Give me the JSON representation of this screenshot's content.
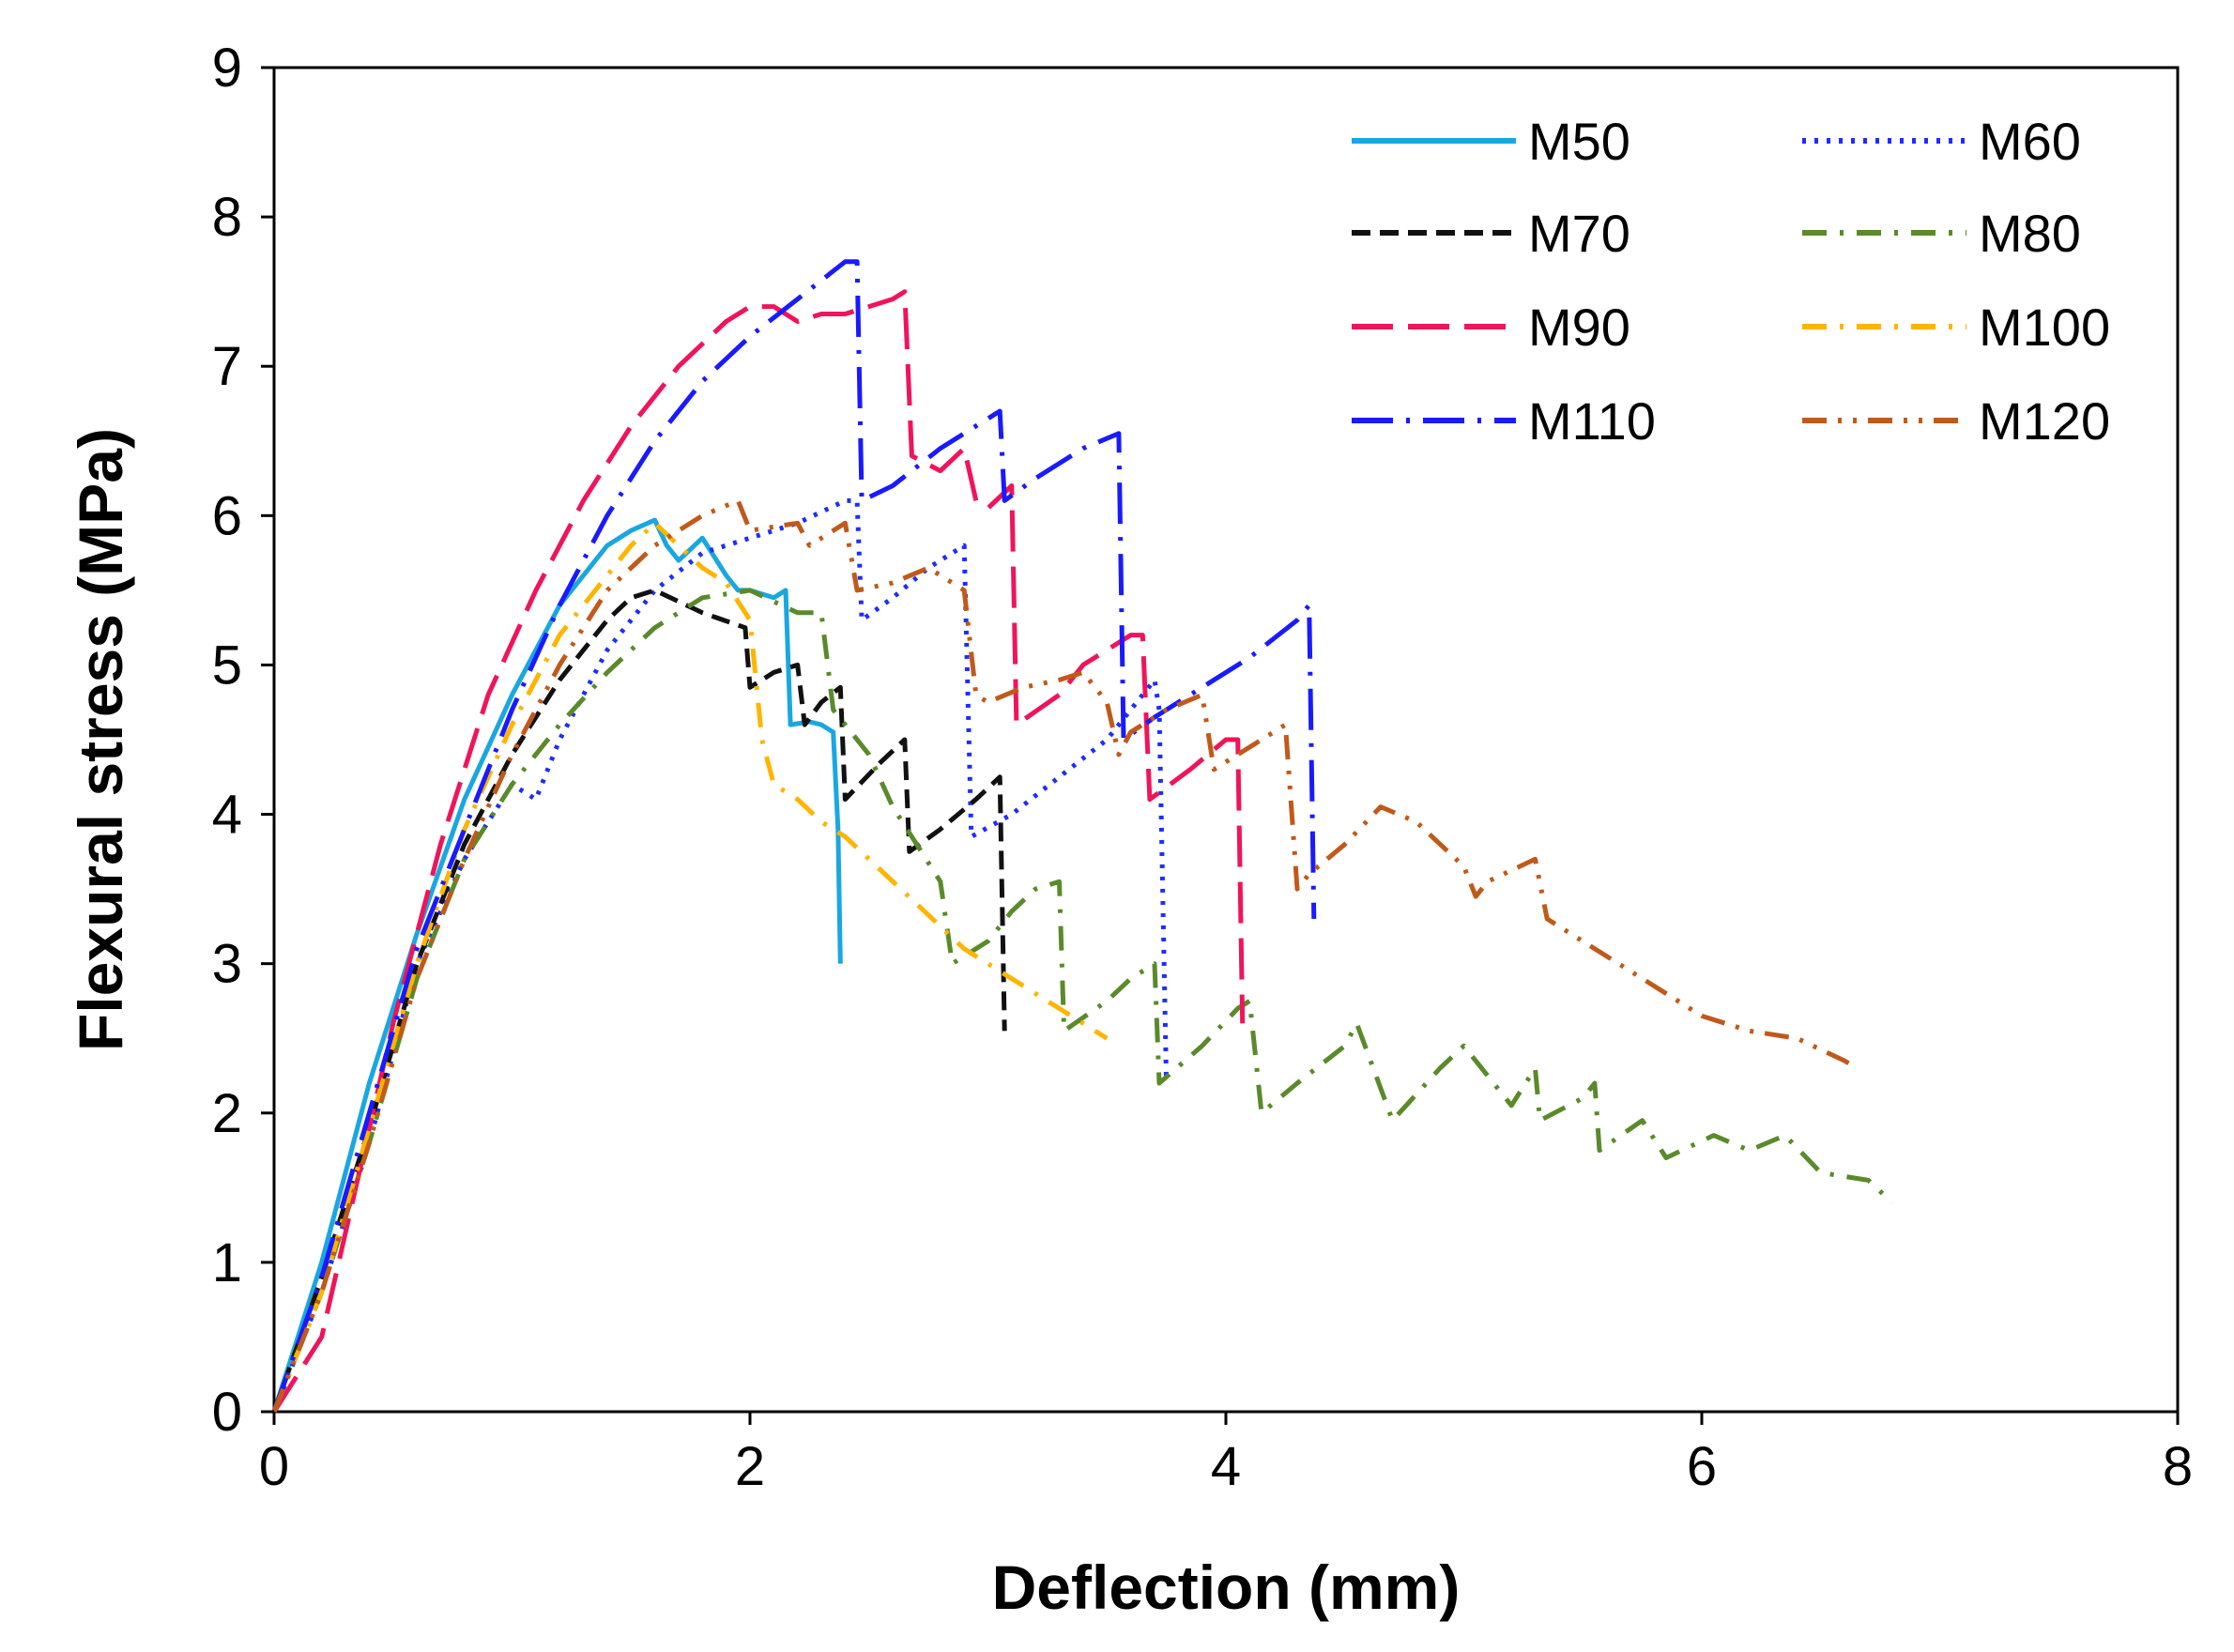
{
  "chart_data": {
    "type": "line",
    "title": "",
    "xlabel": "Deflection (mm)",
    "ylabel": "Flexural stress (MPa)",
    "xlim": [
      0,
      8
    ],
    "ylim": [
      0,
      9
    ],
    "x_ticks": [
      "0",
      "2",
      "4",
      "6",
      "8"
    ],
    "y_ticks": [
      "0",
      "1",
      "2",
      "3",
      "4",
      "5",
      "6",
      "7",
      "8",
      "9"
    ],
    "grid": false,
    "legend_position": "top-right",
    "series": [
      {
        "name": "M50",
        "color": "#1aa7e0",
        "dash": "solid",
        "x": [
          0,
          0.1,
          0.2,
          0.4,
          0.6,
          0.8,
          1.0,
          1.2,
          1.4,
          1.5,
          1.6,
          1.65,
          1.7,
          1.8,
          1.9,
          1.95,
          2.0,
          2.1,
          2.15,
          2.17,
          2.25,
          2.3,
          2.35,
          2.37,
          2.38
        ],
        "y": [
          0,
          0.5,
          1.0,
          2.2,
          3.2,
          4.1,
          4.8,
          5.4,
          5.8,
          5.9,
          5.97,
          5.8,
          5.7,
          5.85,
          5.6,
          5.5,
          5.5,
          5.45,
          5.5,
          4.6,
          4.62,
          4.6,
          4.55,
          3.9,
          3.0
        ]
      },
      {
        "name": "M60",
        "color": "#1f2cff",
        "dash": "dotted",
        "x": [
          0,
          0.2,
          0.4,
          0.6,
          0.8,
          1.0,
          1.1,
          1.2,
          1.4,
          1.6,
          1.8,
          2.0,
          2.2,
          2.4,
          2.45,
          2.47,
          2.6,
          2.75,
          2.9,
          2.93,
          3.1,
          3.3,
          3.5,
          3.6,
          3.7,
          3.72,
          3.75
        ],
        "y": [
          0,
          0.8,
          1.8,
          3.0,
          3.7,
          4.2,
          4.1,
          4.5,
          5.1,
          5.5,
          5.75,
          5.85,
          5.95,
          6.1,
          6.1,
          5.3,
          5.45,
          5.65,
          5.8,
          3.85,
          4.0,
          4.25,
          4.5,
          4.7,
          4.9,
          4.7,
          2.2
        ]
      },
      {
        "name": "M70",
        "color": "#111111",
        "dash": "dashed",
        "x": [
          0,
          0.2,
          0.4,
          0.6,
          0.8,
          1.0,
          1.2,
          1.4,
          1.5,
          1.6,
          1.8,
          1.98,
          2.0,
          2.1,
          2.2,
          2.23,
          2.3,
          2.38,
          2.4,
          2.55,
          2.65,
          2.67,
          2.8,
          2.95,
          3.05,
          3.07
        ],
        "y": [
          0,
          0.9,
          1.9,
          3.0,
          3.8,
          4.4,
          4.9,
          5.3,
          5.45,
          5.5,
          5.35,
          5.25,
          4.85,
          4.95,
          5.0,
          4.6,
          4.75,
          4.85,
          4.1,
          4.35,
          4.5,
          3.75,
          3.9,
          4.1,
          4.25,
          2.55
        ]
      },
      {
        "name": "M80",
        "color": "#5a8a2a",
        "dash": "dash-dot",
        "x": [
          0,
          0.2,
          0.4,
          0.6,
          0.8,
          1.0,
          1.2,
          1.4,
          1.6,
          1.8,
          2.0,
          2.2,
          2.3,
          2.35,
          2.5,
          2.6,
          2.7,
          2.8,
          2.85,
          3.0,
          3.1,
          3.2,
          3.3,
          3.32,
          3.5,
          3.6,
          3.7,
          3.72,
          3.9,
          4.05,
          4.1,
          4.15,
          4.3,
          4.5,
          4.55,
          4.7,
          4.9,
          5.0,
          5.2,
          5.3,
          5.32,
          5.5,
          5.55,
          5.57,
          5.75,
          5.85,
          6.05,
          6.2,
          6.35,
          6.5,
          6.7,
          6.8
        ],
        "y": [
          0,
          0.8,
          1.8,
          2.9,
          3.7,
          4.2,
          4.6,
          4.95,
          5.25,
          5.45,
          5.5,
          5.35,
          5.35,
          4.7,
          4.4,
          4.05,
          3.8,
          3.55,
          3.0,
          3.15,
          3.35,
          3.5,
          3.55,
          2.55,
          2.75,
          2.9,
          3.0,
          2.2,
          2.45,
          2.7,
          2.75,
          2.0,
          2.2,
          2.45,
          2.6,
          1.95,
          2.3,
          2.45,
          2.05,
          2.3,
          1.95,
          2.1,
          2.2,
          1.75,
          1.95,
          1.7,
          1.85,
          1.75,
          1.85,
          1.6,
          1.55,
          1.4
        ]
      },
      {
        "name": "M90",
        "color": "#f0145a",
        "dash": "long-dash",
        "x": [
          0,
          0.2,
          0.3,
          0.5,
          0.7,
          0.9,
          1.1,
          1.3,
          1.5,
          1.7,
          1.9,
          2.0,
          2.1,
          2.2,
          2.3,
          2.4,
          2.5,
          2.6,
          2.65,
          2.68,
          2.8,
          2.9,
          2.95,
          3.0,
          3.1,
          3.12,
          3.3,
          3.4,
          3.5,
          3.6,
          3.65,
          3.68,
          3.85,
          4.0,
          4.05,
          4.07
        ],
        "y": [
          0,
          0.5,
          1.2,
          2.6,
          3.8,
          4.8,
          5.5,
          6.1,
          6.6,
          7.0,
          7.3,
          7.4,
          7.4,
          7.3,
          7.35,
          7.35,
          7.4,
          7.45,
          7.5,
          6.4,
          6.3,
          6.45,
          6.1,
          6.05,
          6.2,
          4.6,
          4.8,
          5.0,
          5.1,
          5.2,
          5.2,
          4.1,
          4.3,
          4.5,
          4.5,
          2.6
        ]
      },
      {
        "name": "M100",
        "color": "#ffb400",
        "dash": "dash-dot",
        "x": [
          0,
          0.2,
          0.4,
          0.6,
          0.8,
          1.0,
          1.2,
          1.4,
          1.5,
          1.6,
          1.7,
          1.8,
          1.9,
          2.0,
          2.05,
          2.1,
          2.2,
          2.3,
          2.4,
          2.5,
          2.7,
          2.9,
          3.1,
          3.3,
          3.5
        ],
        "y": [
          0,
          0.8,
          1.9,
          3.0,
          3.9,
          4.6,
          5.2,
          5.6,
          5.8,
          5.95,
          5.8,
          5.65,
          5.55,
          5.3,
          4.5,
          4.2,
          4.1,
          3.95,
          3.85,
          3.7,
          3.4,
          3.1,
          2.9,
          2.7,
          2.5
        ]
      },
      {
        "name": "M110",
        "color": "#1a1aff",
        "dash": "long-dash-dot",
        "x": [
          0,
          0.2,
          0.4,
          0.6,
          0.8,
          1.0,
          1.2,
          1.4,
          1.6,
          1.8,
          2.0,
          2.2,
          2.4,
          2.45,
          2.47,
          2.6,
          2.8,
          3.0,
          3.05,
          3.07,
          3.2,
          3.4,
          3.55,
          3.57,
          3.7,
          3.9,
          4.1,
          4.3,
          4.35,
          4.37
        ],
        "y": [
          0,
          0.9,
          2.0,
          3.1,
          3.9,
          4.7,
          5.4,
          6.0,
          6.5,
          6.9,
          7.2,
          7.45,
          7.7,
          7.7,
          6.1,
          6.2,
          6.45,
          6.65,
          6.7,
          6.1,
          6.25,
          6.45,
          6.55,
          4.5,
          4.65,
          4.85,
          5.05,
          5.3,
          5.4,
          3.3
        ]
      },
      {
        "name": "M120",
        "color": "#c05a1a",
        "dash": "dash-dot-dot",
        "x": [
          0,
          0.2,
          0.4,
          0.6,
          0.8,
          1.0,
          1.2,
          1.4,
          1.6,
          1.8,
          1.95,
          2.0,
          2.2,
          2.25,
          2.4,
          2.45,
          2.6,
          2.75,
          2.9,
          2.95,
          3.0,
          3.15,
          3.3,
          3.4,
          3.5,
          3.55,
          3.6,
          3.75,
          3.9,
          3.95,
          4.1,
          4.25,
          4.3,
          4.35,
          4.5,
          4.65,
          4.8,
          4.9,
          5.0,
          5.05,
          5.1,
          5.3,
          5.35,
          5.5,
          5.6,
          5.8,
          6.0,
          6.2,
          6.4,
          6.6,
          6.65
        ],
        "y": [
          0,
          0.8,
          1.8,
          2.9,
          3.7,
          4.4,
          5.0,
          5.5,
          5.8,
          6.0,
          6.1,
          5.9,
          5.95,
          5.8,
          5.95,
          5.5,
          5.55,
          5.65,
          5.5,
          4.8,
          4.75,
          4.85,
          4.9,
          4.95,
          4.75,
          4.4,
          4.55,
          4.7,
          4.8,
          4.3,
          4.45,
          4.6,
          3.5,
          3.6,
          3.8,
          4.05,
          3.95,
          3.8,
          3.65,
          3.45,
          3.55,
          3.7,
          3.3,
          3.15,
          3.05,
          2.85,
          2.65,
          2.55,
          2.5,
          2.35,
          2.3
        ]
      }
    ]
  }
}
